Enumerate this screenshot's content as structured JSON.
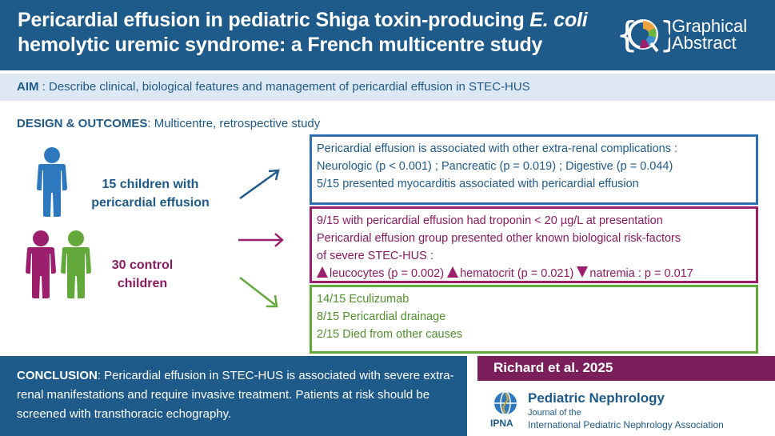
{
  "header": {
    "title_part1": "Pericardial effusion in pediatric Shiga toxin-producing ",
    "title_italic": "E. coli",
    "title_part2": "hemolytic uremic syndrome: a French multicentre study",
    "badge_line1": "Graphical",
    "badge_line2": "Abstract"
  },
  "aim": {
    "label": "AIM",
    "text": " : Describe clinical, biological features and management of pericardial effusion in STEC-HUS"
  },
  "design": {
    "label": "DESIGN & OUTCOMES",
    "text": ": Multicentre, retrospective study"
  },
  "groups": {
    "effusion_line1": "15 children with",
    "effusion_line2": "pericardial effusion",
    "control_line1": "30 control",
    "control_line2": "children"
  },
  "box1": {
    "line1": "Pericardial effusion is associated with other extra-renal complications :",
    "line2": "Neurologic (p < 0.001) ; Pancreatic (p = 0.019) ; Digestive (p = 0.044)",
    "line3": "5/15 presented myocarditis associated with pericardial effusion"
  },
  "box2": {
    "line1": "9/15 with pericardial effusion had troponin < 20 µg/L at presentation",
    "line2": "Pericardial effusion group presented other known biological risk-factors",
    "line3": "of severe STEC-HUS :",
    "item1": "leucocytes (p = 0.002)",
    "item2": "hematocrit (p = 0.021)",
    "item3": "natremia : p = 0.017"
  },
  "box3": {
    "line1": "14/15 Eculizumab",
    "line2": "8/15 Pericardial drainage",
    "line3": "2/15 Died from other causes"
  },
  "conclusion": {
    "label": "CONCLUSION",
    "text": ": Pericardial effusion in STEC-HUS is associated with severe extra-renal manifestations and require invasive treatment. Patients at risk should be screened with transthoracic echography."
  },
  "citation": "Richard et al. 2025",
  "journal": {
    "name": "Pediatric Nephrology",
    "sub1": "Journal of the",
    "sub2": "International Pediatric Nephrology Association",
    "logo_text": "IPNA"
  },
  "colors": {
    "blue": "#1e5a8a",
    "purple": "#9c1f6e",
    "green": "#63a83a"
  }
}
